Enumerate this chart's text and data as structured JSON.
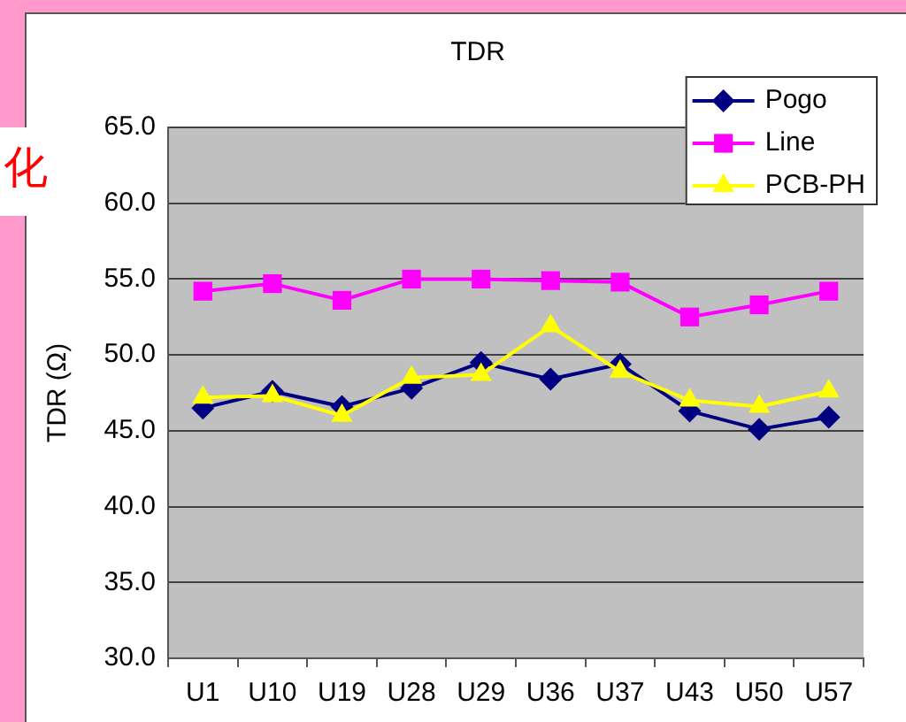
{
  "chart_data": {
    "type": "line",
    "title": "TDR",
    "ylabel": "TDR (Ω)",
    "annotations": [
      "化"
    ],
    "categories": [
      "U1",
      "U10",
      "U19",
      "U28",
      "U29",
      "U36",
      "U37",
      "U43",
      "U50",
      "U57"
    ],
    "series": [
      {
        "name": "Pogo",
        "color": "#000080",
        "marker": "diamond",
        "values": [
          46.5,
          47.6,
          46.6,
          47.8,
          49.5,
          48.4,
          49.4,
          46.3,
          45.1,
          45.9
        ]
      },
      {
        "name": "Line",
        "color": "#ff00ff",
        "marker": "square",
        "values": [
          54.2,
          54.7,
          53.6,
          55.0,
          55.0,
          54.9,
          54.8,
          52.5,
          53.3,
          54.2
        ]
      },
      {
        "name": "PCB-PH",
        "color": "#ffff00",
        "marker": "triangle",
        "values": [
          47.2,
          47.3,
          46.0,
          48.5,
          48.7,
          51.9,
          48.9,
          47.0,
          46.6,
          47.6
        ]
      }
    ],
    "ylim": [
      30,
      65
    ],
    "yticks": [
      {
        "value": 30,
        "label": "30.0"
      },
      {
        "value": 35,
        "label": "35.0"
      },
      {
        "value": 40,
        "label": "40.0"
      },
      {
        "value": 45,
        "label": "45.0"
      },
      {
        "value": 50,
        "label": "50.0"
      },
      {
        "value": 55,
        "label": "55.0"
      },
      {
        "value": 60,
        "label": "60.0"
      },
      {
        "value": 65,
        "label": "65.0"
      }
    ],
    "grid": "y",
    "legend": "top right",
    "line_style": "solid"
  }
}
